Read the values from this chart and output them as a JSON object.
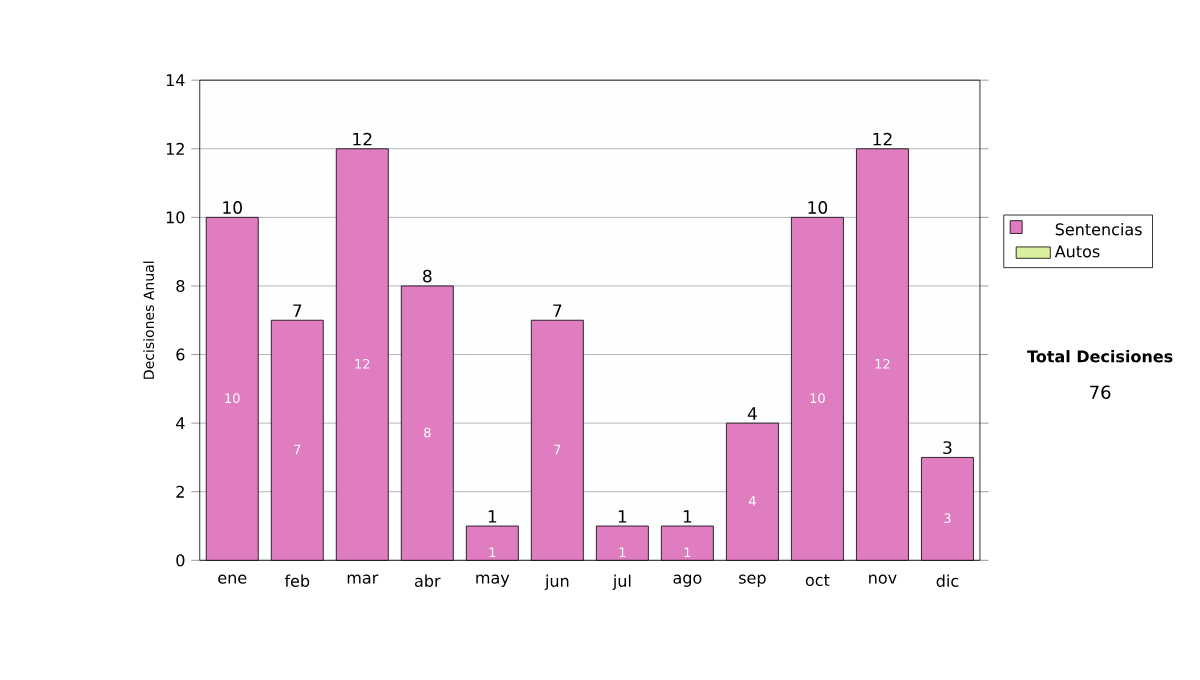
{
  "chart_data": {
    "type": "bar",
    "stacked": true,
    "ylabel": "Decisiones Anual",
    "categories": [
      "ene",
      "feb",
      "mar",
      "abr",
      "may",
      "jun",
      "jul",
      "ago",
      "sep",
      "oct",
      "nov",
      "dic"
    ],
    "series": [
      {
        "name": "Sentencias",
        "color": "#e07cc0",
        "values": [
          10,
          7,
          12,
          8,
          1,
          7,
          1,
          1,
          4,
          10,
          12,
          3
        ]
      },
      {
        "name": "Autos",
        "color": "#d8f0a0",
        "values": [
          null,
          null,
          null,
          null,
          null,
          null,
          null,
          null,
          null,
          null,
          null,
          null
        ]
      }
    ],
    "totals": [
      "10",
      "7",
      "12",
      "8",
      "1",
      "7",
      "1",
      "1",
      "4",
      "10",
      "12",
      "3"
    ],
    "data_labels": true,
    "ylim": [
      0,
      14
    ],
    "yticks": [
      0,
      2,
      4,
      6,
      8,
      10,
      12,
      14
    ],
    "grid": "y",
    "legend": "right",
    "annotations": [
      "Total Decisiones",
      "76"
    ]
  }
}
